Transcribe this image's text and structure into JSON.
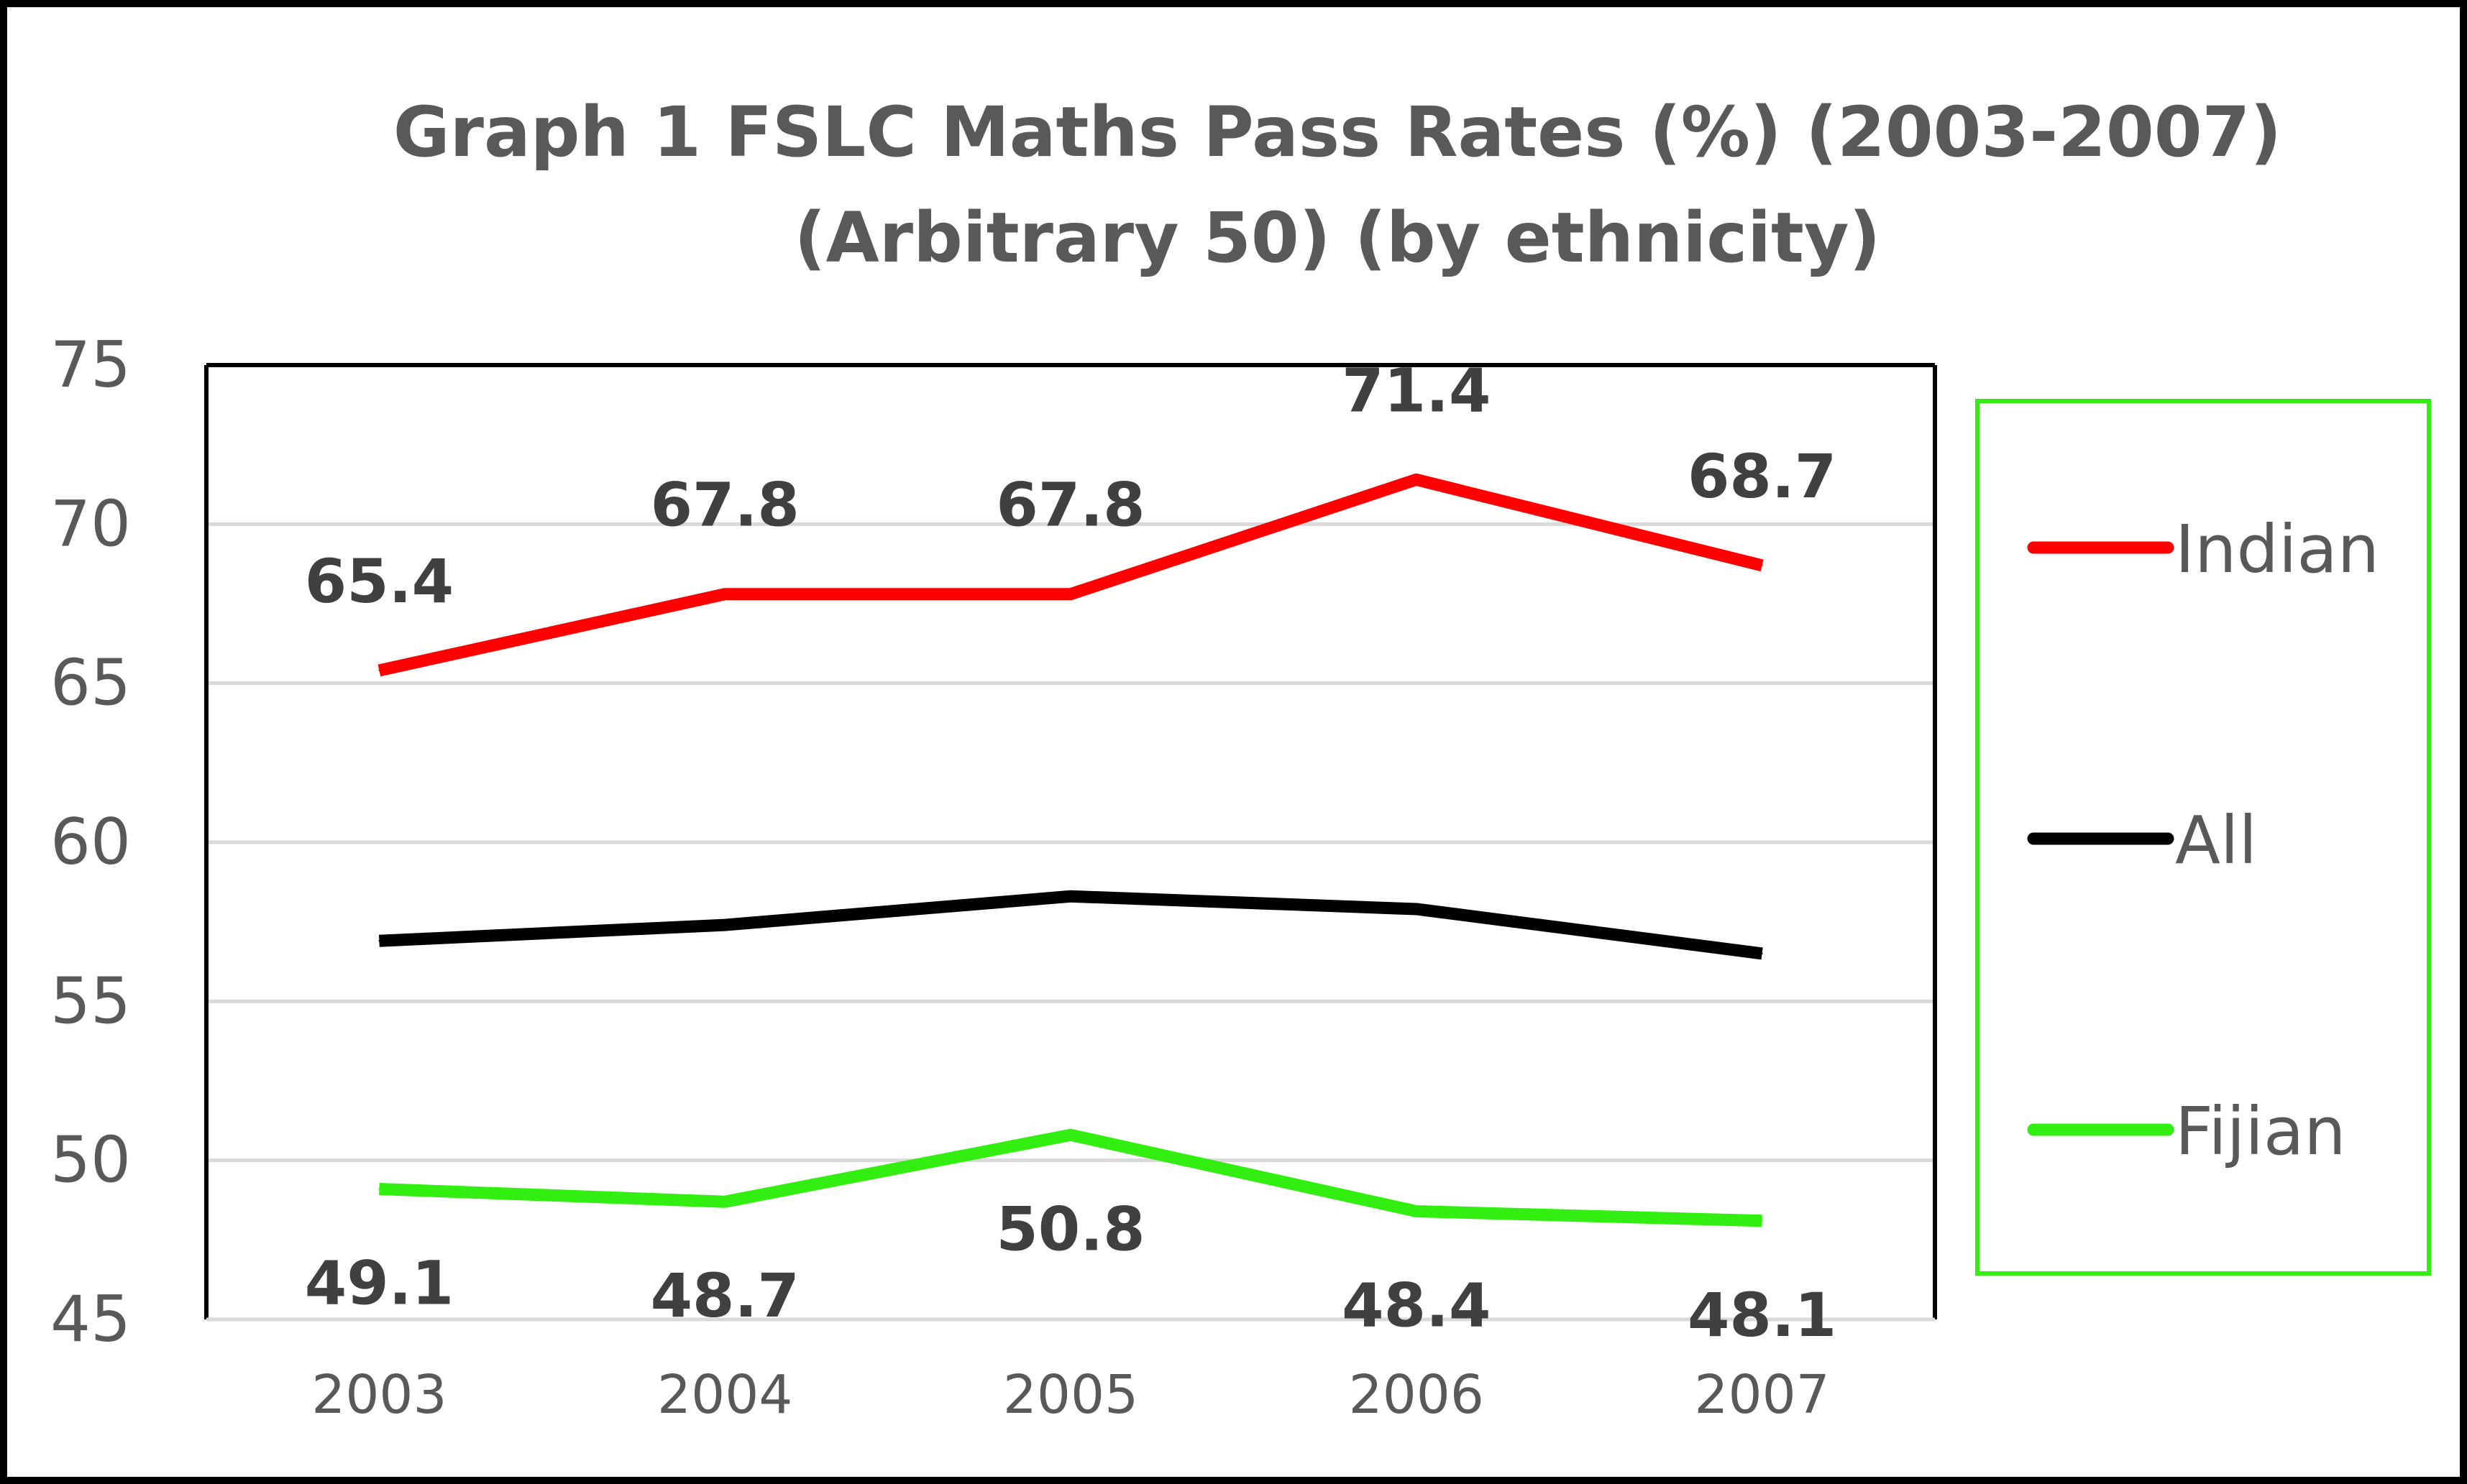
{
  "chart_data": {
    "type": "line",
    "title": [
      "Graph 1    FSLC Maths Pass Rates (%) (2003-2007)",
      "(Arbitrary 50) (by ethnicity)"
    ],
    "xlabel": "",
    "ylabel": "",
    "categories": [
      "2003",
      "2004",
      "2005",
      "2006",
      "2007"
    ],
    "ylim": [
      45,
      75
    ],
    "yticks": [
      45,
      50,
      55,
      60,
      65,
      70,
      75
    ],
    "grid": true,
    "legend": "right",
    "series": [
      {
        "name": "Indian",
        "color": "#ff0000",
        "values": [
          65.4,
          67.8,
          67.8,
          71.4,
          68.7
        ],
        "labels": [
          "65.4",
          "67.8",
          "67.8",
          "71.4",
          "68.7"
        ],
        "label_position": "above"
      },
      {
        "name": "All",
        "color": "#000000",
        "values": [
          56.9,
          57.4,
          58.3,
          57.9,
          56.5
        ],
        "labels": null
      },
      {
        "name": "Fijian",
        "color": "#33ee11",
        "values": [
          49.1,
          48.7,
          50.8,
          48.4,
          48.1
        ],
        "labels": [
          "49.1",
          "48.7",
          "50.8",
          "48.4",
          "48.1"
        ],
        "label_position": "below"
      }
    ]
  }
}
